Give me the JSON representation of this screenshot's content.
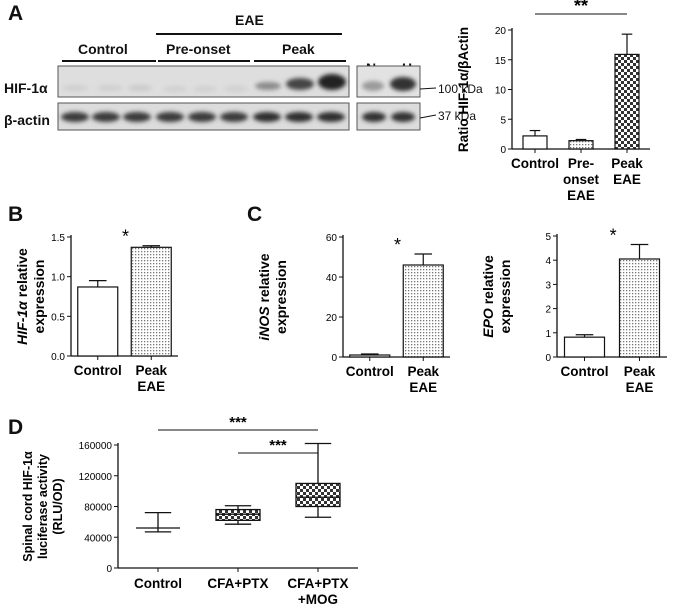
{
  "panels": {
    "a": "A",
    "b": "B",
    "c": "C",
    "d": "D"
  },
  "blot": {
    "eae_label": "EAE",
    "group_labels": [
      "Control",
      "Pre-onset",
      "Peak"
    ],
    "inset_labels": [
      "N",
      "H"
    ],
    "row_labels": [
      "HIF-1α",
      "β-actin"
    ],
    "kda_labels": [
      "100 kDa",
      "37 kDa"
    ]
  },
  "chart_data": [
    {
      "id": "A",
      "type": "bar",
      "categories": [
        [
          "Control"
        ],
        [
          "Pre-",
          "onset",
          "EAE"
        ],
        [
          "Peak",
          "EAE"
        ]
      ],
      "series": [
        {
          "values": [
            2.2,
            1.4,
            15.9
          ],
          "errors": [
            0.9,
            0.2,
            3.4
          ]
        }
      ],
      "ylabel": "Ratio HIF-1α/βActin",
      "ylim": [
        0,
        20
      ],
      "yticks": [
        0,
        5,
        10,
        15,
        20
      ],
      "fills": [
        "white",
        "dots",
        "check"
      ],
      "significance": [
        {
          "from": 0,
          "to": 2,
          "label": "**"
        }
      ]
    },
    {
      "id": "B",
      "type": "bar",
      "categories": [
        [
          "Control"
        ],
        [
          "Peak",
          "EAE"
        ]
      ],
      "series": [
        {
          "values": [
            0.87,
            1.37
          ],
          "errors": [
            0.08,
            0.02
          ]
        }
      ],
      "ylabel_parts": [
        {
          "text": "HIF-1α",
          "italic": true
        },
        {
          "text": " relative",
          "italic": false
        }
      ],
      "ylabel2": "expression",
      "ylim": [
        0,
        1.5
      ],
      "yticks": [
        "0.0",
        "0.5",
        "1.0",
        "1.5"
      ],
      "fills": [
        "white",
        "dots"
      ],
      "significance": [
        {
          "over": 1,
          "label": "*"
        }
      ]
    },
    {
      "id": "C1",
      "type": "bar",
      "categories": [
        [
          "Control"
        ],
        [
          "Peak",
          "EAE"
        ]
      ],
      "series": [
        {
          "values": [
            1,
            46
          ],
          "errors": [
            0.5,
            5.5
          ]
        }
      ],
      "ylabel_parts": [
        {
          "text": "iNOS",
          "italic": true
        },
        {
          "text": " relative",
          "italic": false
        }
      ],
      "ylabel2": "expression",
      "ylim": [
        0,
        60
      ],
      "yticks": [
        0,
        20,
        40,
        60
      ],
      "fills": [
        "white",
        "dots"
      ],
      "significance": [
        {
          "over": 1,
          "label": "*"
        }
      ]
    },
    {
      "id": "C2",
      "type": "bar",
      "categories": [
        [
          "Control"
        ],
        [
          "Peak",
          "EAE"
        ]
      ],
      "series": [
        {
          "values": [
            0.82,
            4.05
          ],
          "errors": [
            0.1,
            0.6
          ]
        }
      ],
      "ylabel_parts": [
        {
          "text": "EPO",
          "italic": true
        },
        {
          "text": " relative",
          "italic": false
        }
      ],
      "ylabel2": "expression",
      "ylim": [
        0,
        5
      ],
      "yticks": [
        0,
        1,
        2,
        3,
        4,
        5
      ],
      "fills": [
        "white",
        "dots"
      ],
      "significance": [
        {
          "over": 1,
          "label": "*"
        }
      ]
    },
    {
      "id": "D",
      "type": "box",
      "categories": [
        [
          "Control"
        ],
        [
          "CFA+PTX"
        ],
        [
          "CFA+PTX",
          "+MOG"
        ]
      ],
      "boxes": [
        {
          "min": 47000,
          "q1": 52000,
          "median": 52000,
          "q3": 52000,
          "max": 72000
        },
        {
          "min": 57000,
          "q1": 62000,
          "median": 70000,
          "q3": 76000,
          "max": 81000
        },
        {
          "min": 66000,
          "q1": 80000,
          "median": 92000,
          "q3": 110000,
          "max": 162000
        }
      ],
      "ylabel_lines": [
        "Spinal cord HIF-1α",
        "luciferase activity",
        "(RLU/OD)"
      ],
      "ylim": [
        0,
        160000
      ],
      "yticks": [
        0,
        40000,
        80000,
        120000,
        160000
      ],
      "fills": [
        "white",
        "check",
        "check"
      ],
      "significance": [
        {
          "from": 0,
          "to": 2,
          "label": "***"
        },
        {
          "from": 1,
          "to": 2,
          "label": "***"
        }
      ]
    }
  ]
}
